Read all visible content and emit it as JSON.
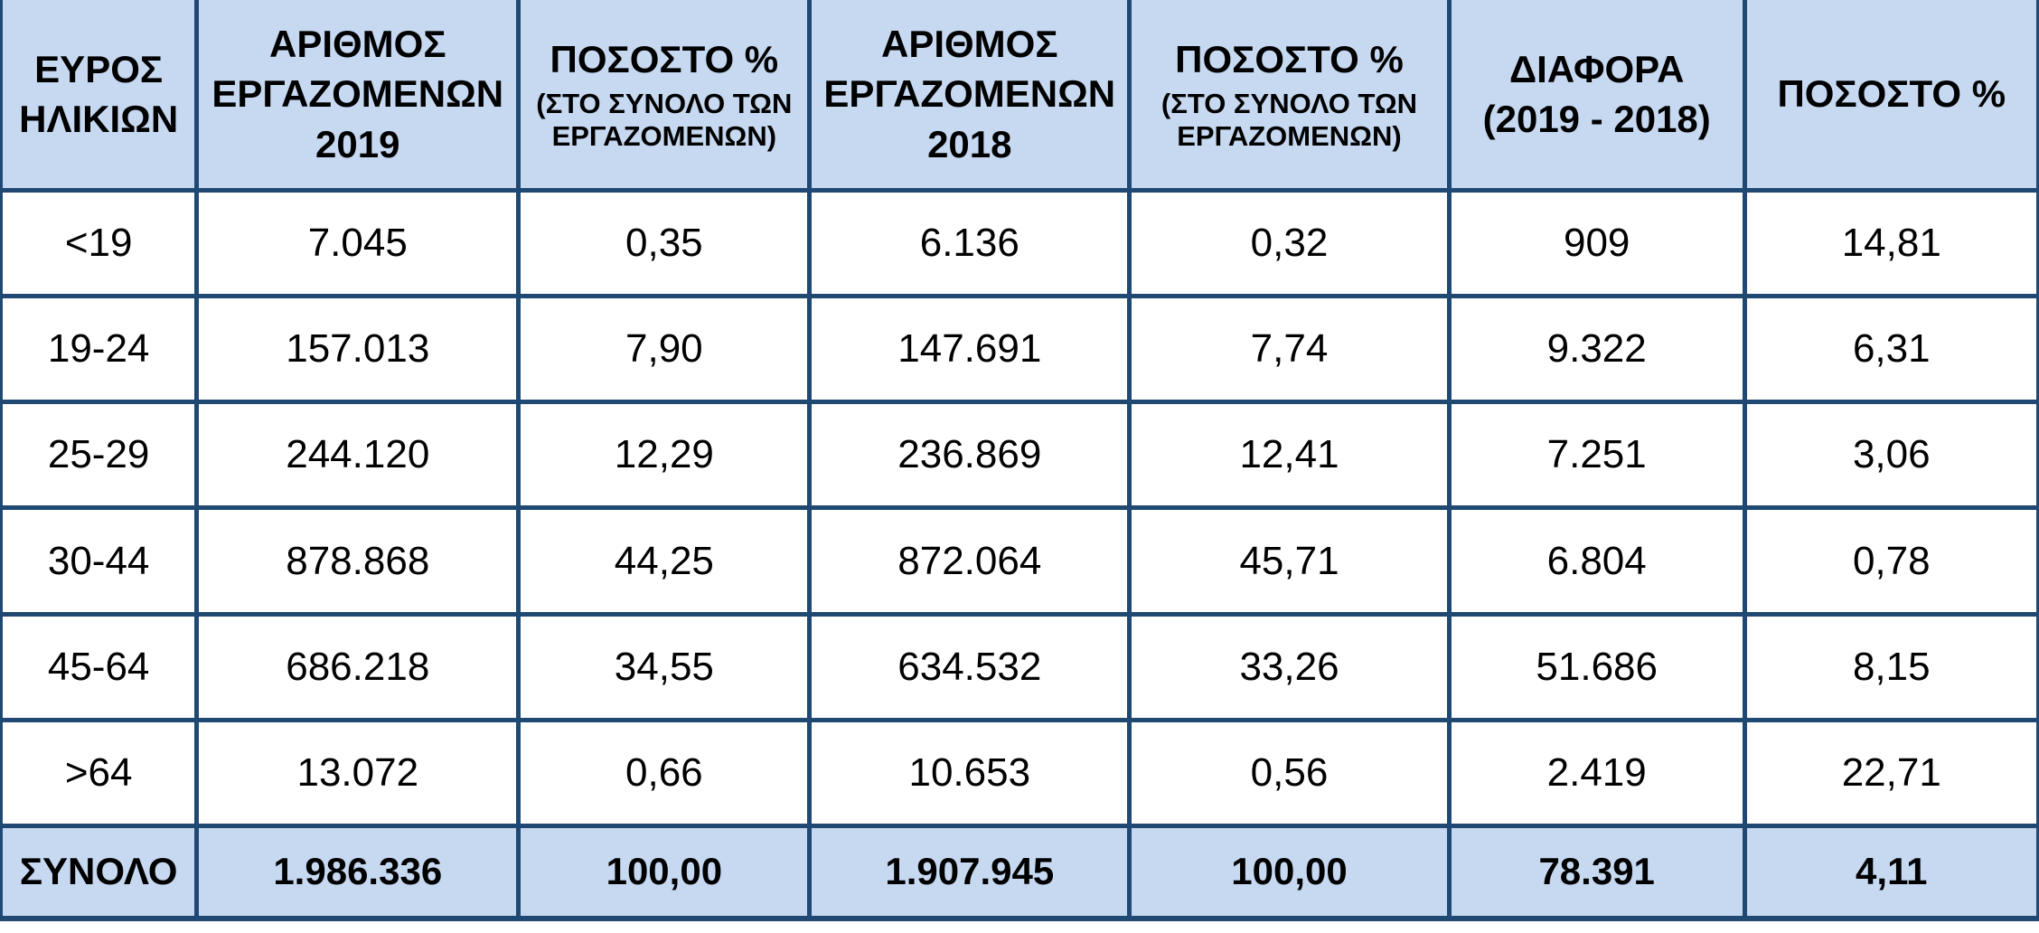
{
  "colors": {
    "header_background": "#C6D9F1",
    "border": "#1F4873",
    "cell_background": "#FFFFFF",
    "text": "#000000"
  },
  "table": {
    "columns": [
      {
        "label": "ΕΥΡΟΣ\nΗΛΙΚΙΩΝ",
        "sub": ""
      },
      {
        "label": "ΑΡΙΘΜΟΣ\nΕΡΓΑΖΟΜΕΝΩΝ\n2019",
        "sub": ""
      },
      {
        "label": "ΠΟΣΟΣΤΟ %",
        "sub": "(ΣΤΟ ΣΥΝΟΛΟ ΤΩΝ ΕΡΓΑΖΟΜΕΝΩΝ)"
      },
      {
        "label": "ΑΡΙΘΜΟΣ\nΕΡΓΑΖΟΜΕΝΩΝ\n2018",
        "sub": ""
      },
      {
        "label": "ΠΟΣΟΣΤΟ %",
        "sub": "(ΣΤΟ ΣΥΝΟΛΟ ΤΩΝ ΕΡΓΑΖΟΜΕΝΩΝ)"
      },
      {
        "label": "ΔΙΑΦΟΡΑ\n(2019 - 2018)",
        "sub": ""
      },
      {
        "label": "ΠΟΣΟΣΤΟ %",
        "sub": ""
      }
    ],
    "rows": [
      [
        "<19",
        "7.045",
        "0,35",
        "6.136",
        "0,32",
        "909",
        "14,81"
      ],
      [
        "19-24",
        "157.013",
        "7,90",
        "147.691",
        "7,74",
        "9.322",
        "6,31"
      ],
      [
        "25-29",
        "244.120",
        "12,29",
        "236.869",
        "12,41",
        "7.251",
        "3,06"
      ],
      [
        "30-44",
        "878.868",
        "44,25",
        "872.064",
        "45,71",
        "6.804",
        "0,78"
      ],
      [
        "45-64",
        "686.218",
        "34,55",
        "634.532",
        "33,26",
        "51.686",
        "8,15"
      ],
      [
        ">64",
        "13.072",
        "0,66",
        "10.653",
        "0,56",
        "2.419",
        "22,71"
      ]
    ],
    "total_row": [
      "ΣΥΝΟΛΟ",
      "1.986.336",
      "100,00",
      "1.907.945",
      "100,00",
      "78.391",
      "4,11"
    ]
  },
  "chart_data": {
    "type": "table",
    "title": "",
    "columns": [
      "ΕΥΡΟΣ ΗΛΙΚΙΩΝ",
      "ΑΡΙΘΜΟΣ ΕΡΓΑΖΟΜΕΝΩΝ 2019",
      "ΠΟΣΟΣΤΟ % (ΣΤΟ ΣΥΝΟΛΟ ΤΩΝ ΕΡΓΑΖΟΜΕΝΩΝ)",
      "ΑΡΙΘΜΟΣ ΕΡΓΑΖΟΜΕΝΩΝ 2018",
      "ΠΟΣΟΣΤΟ % (ΣΤΟ ΣΥΝΟΛΟ ΤΩΝ ΕΡΓΑΖΟΜΕΝΩΝ)",
      "ΔΙΑΦΟΡΑ (2019 - 2018)",
      "ΠΟΣΟΣΤΟ %"
    ],
    "rows": [
      [
        "<19",
        7045,
        0.35,
        6136,
        0.32,
        909,
        14.81
      ],
      [
        "19-24",
        157013,
        7.9,
        147691,
        7.74,
        9322,
        6.31
      ],
      [
        "25-29",
        244120,
        12.29,
        236869,
        12.41,
        7251,
        3.06
      ],
      [
        "30-44",
        878868,
        44.25,
        872064,
        45.71,
        6804,
        0.78
      ],
      [
        "45-64",
        686218,
        34.55,
        634532,
        33.26,
        51686,
        8.15
      ],
      [
        ">64",
        13072,
        0.66,
        10653,
        0.56,
        2419,
        22.71
      ],
      [
        "ΣΥΝΟΛΟ",
        1986336,
        100.0,
        1907945,
        100.0,
        78391,
        4.11
      ]
    ]
  }
}
